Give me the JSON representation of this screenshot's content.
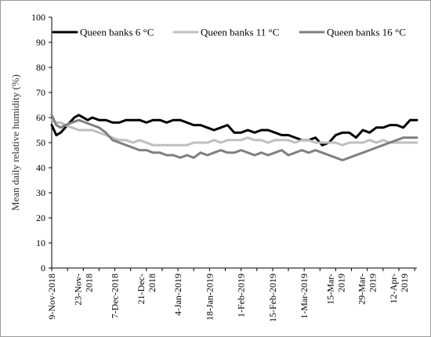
{
  "chart_data": {
    "type": "line",
    "title": "",
    "xlabel": "",
    "ylabel": "Mean daily relative humidity (%)",
    "ylim": [
      0,
      100
    ],
    "yticks": [
      0,
      10,
      20,
      30,
      40,
      50,
      60,
      70,
      80,
      90,
      100
    ],
    "xlim": [
      "2018-11-09",
      "2019-04-20"
    ],
    "grid": false,
    "legend_position": "top",
    "x_tick_labels": [
      {
        "date": "2018-11-09",
        "lines": [
          "9-Nov-2018"
        ]
      },
      {
        "date": "2018-11-23",
        "lines": [
          "23-Nov-",
          "2018"
        ]
      },
      {
        "date": "2018-12-07",
        "lines": [
          "7-Dec-2018"
        ]
      },
      {
        "date": "2018-12-21",
        "lines": [
          "21-Dec-",
          "2018"
        ]
      },
      {
        "date": "2019-01-04",
        "lines": [
          "4-Jan-2019"
        ]
      },
      {
        "date": "2019-01-18",
        "lines": [
          "18-Jan-2019"
        ]
      },
      {
        "date": "2019-02-01",
        "lines": [
          "1-Feb-2019"
        ]
      },
      {
        "date": "2019-02-15",
        "lines": [
          "15-Feb-2019"
        ]
      },
      {
        "date": "2019-03-01",
        "lines": [
          "1-Mar-2019"
        ]
      },
      {
        "date": "2019-03-15",
        "lines": [
          "15-Mar-",
          "2019"
        ]
      },
      {
        "date": "2019-03-29",
        "lines": [
          "29-Mar-",
          "2019"
        ]
      },
      {
        "date": "2019-04-12",
        "lines": [
          "12-Apr-",
          "2019"
        ]
      }
    ],
    "series": [
      {
        "name": "Queen banks 6 °C",
        "color": "#000000",
        "points": [
          [
            "2018-11-09",
            57
          ],
          [
            "2018-11-11",
            53
          ],
          [
            "2018-11-13",
            54
          ],
          [
            "2018-11-15",
            56
          ],
          [
            "2018-11-17",
            58
          ],
          [
            "2018-11-19",
            60
          ],
          [
            "2018-11-21",
            61
          ],
          [
            "2018-11-23",
            60
          ],
          [
            "2018-11-25",
            59
          ],
          [
            "2018-11-27",
            60
          ],
          [
            "2018-11-30",
            59
          ],
          [
            "2018-12-03",
            59
          ],
          [
            "2018-12-06",
            58
          ],
          [
            "2018-12-09",
            58
          ],
          [
            "2018-12-12",
            59
          ],
          [
            "2018-12-15",
            59
          ],
          [
            "2018-12-18",
            59
          ],
          [
            "2018-12-21",
            58
          ],
          [
            "2018-12-24",
            59
          ],
          [
            "2018-12-27",
            59
          ],
          [
            "2018-12-30",
            58
          ],
          [
            "2019-01-02",
            59
          ],
          [
            "2019-01-05",
            59
          ],
          [
            "2019-01-08",
            58
          ],
          [
            "2019-01-11",
            57
          ],
          [
            "2019-01-14",
            57
          ],
          [
            "2019-01-17",
            56
          ],
          [
            "2019-01-20",
            55
          ],
          [
            "2019-01-23",
            56
          ],
          [
            "2019-01-26",
            57
          ],
          [
            "2019-01-29",
            54
          ],
          [
            "2019-02-01",
            54
          ],
          [
            "2019-02-04",
            55
          ],
          [
            "2019-02-07",
            54
          ],
          [
            "2019-02-10",
            55
          ],
          [
            "2019-02-13",
            55
          ],
          [
            "2019-02-16",
            54
          ],
          [
            "2019-02-19",
            53
          ],
          [
            "2019-02-22",
            53
          ],
          [
            "2019-02-25",
            52
          ],
          [
            "2019-02-28",
            51
          ],
          [
            "2019-03-03",
            51
          ],
          [
            "2019-03-06",
            52
          ],
          [
            "2019-03-09",
            49
          ],
          [
            "2019-03-12",
            50
          ],
          [
            "2019-03-15",
            53
          ],
          [
            "2019-03-18",
            54
          ],
          [
            "2019-03-21",
            54
          ],
          [
            "2019-03-24",
            52
          ],
          [
            "2019-03-27",
            55
          ],
          [
            "2019-03-30",
            54
          ],
          [
            "2019-04-02",
            56
          ],
          [
            "2019-04-05",
            56
          ],
          [
            "2019-04-08",
            57
          ],
          [
            "2019-04-11",
            57
          ],
          [
            "2019-04-14",
            56
          ],
          [
            "2019-04-17",
            59
          ],
          [
            "2019-04-20",
            59
          ]
        ]
      },
      {
        "name": "Queen banks 11 °C",
        "color": "#bfbfbf",
        "points": [
          [
            "2018-11-09",
            59
          ],
          [
            "2018-11-11",
            58
          ],
          [
            "2018-11-13",
            58
          ],
          [
            "2018-11-15",
            57
          ],
          [
            "2018-11-18",
            56
          ],
          [
            "2018-11-21",
            55
          ],
          [
            "2018-11-24",
            55
          ],
          [
            "2018-11-27",
            55
          ],
          [
            "2018-11-30",
            54
          ],
          [
            "2018-12-03",
            53
          ],
          [
            "2018-12-06",
            52
          ],
          [
            "2018-12-09",
            51
          ],
          [
            "2018-12-12",
            51
          ],
          [
            "2018-12-15",
            50
          ],
          [
            "2018-12-18",
            51
          ],
          [
            "2018-12-21",
            50
          ],
          [
            "2018-12-24",
            49
          ],
          [
            "2018-12-27",
            49
          ],
          [
            "2018-12-30",
            49
          ],
          [
            "2019-01-02",
            49
          ],
          [
            "2019-01-05",
            49
          ],
          [
            "2019-01-08",
            49
          ],
          [
            "2019-01-11",
            50
          ],
          [
            "2019-01-14",
            50
          ],
          [
            "2019-01-17",
            50
          ],
          [
            "2019-01-20",
            51
          ],
          [
            "2019-01-23",
            50
          ],
          [
            "2019-01-26",
            51
          ],
          [
            "2019-01-29",
            51
          ],
          [
            "2019-02-01",
            51
          ],
          [
            "2019-02-04",
            52
          ],
          [
            "2019-02-07",
            51
          ],
          [
            "2019-02-10",
            51
          ],
          [
            "2019-02-13",
            50
          ],
          [
            "2019-02-16",
            51
          ],
          [
            "2019-02-19",
            51
          ],
          [
            "2019-02-22",
            51
          ],
          [
            "2019-02-25",
            50
          ],
          [
            "2019-02-28",
            51
          ],
          [
            "2019-03-03",
            51
          ],
          [
            "2019-03-06",
            50
          ],
          [
            "2019-03-09",
            50
          ],
          [
            "2019-03-12",
            50
          ],
          [
            "2019-03-15",
            50
          ],
          [
            "2019-03-18",
            49
          ],
          [
            "2019-03-21",
            50
          ],
          [
            "2019-03-24",
            50
          ],
          [
            "2019-03-27",
            50
          ],
          [
            "2019-03-30",
            51
          ],
          [
            "2019-04-02",
            50
          ],
          [
            "2019-04-05",
            51
          ],
          [
            "2019-04-08",
            50
          ],
          [
            "2019-04-11",
            50
          ],
          [
            "2019-04-14",
            50
          ],
          [
            "2019-04-17",
            50
          ],
          [
            "2019-04-20",
            50
          ]
        ]
      },
      {
        "name": "Queen banks 16 °C",
        "color": "#808080",
        "points": [
          [
            "2018-11-09",
            61
          ],
          [
            "2018-11-11",
            57
          ],
          [
            "2018-11-13",
            56
          ],
          [
            "2018-11-15",
            57
          ],
          [
            "2018-11-18",
            58
          ],
          [
            "2018-11-21",
            59
          ],
          [
            "2018-11-24",
            58
          ],
          [
            "2018-11-27",
            57
          ],
          [
            "2018-11-30",
            56
          ],
          [
            "2018-12-03",
            54
          ],
          [
            "2018-12-06",
            51
          ],
          [
            "2018-12-09",
            50
          ],
          [
            "2018-12-12",
            49
          ],
          [
            "2018-12-15",
            48
          ],
          [
            "2018-12-18",
            47
          ],
          [
            "2018-12-21",
            47
          ],
          [
            "2018-12-24",
            46
          ],
          [
            "2018-12-27",
            46
          ],
          [
            "2018-12-30",
            45
          ],
          [
            "2019-01-02",
            45
          ],
          [
            "2019-01-05",
            44
          ],
          [
            "2019-01-08",
            45
          ],
          [
            "2019-01-11",
            44
          ],
          [
            "2019-01-14",
            46
          ],
          [
            "2019-01-17",
            45
          ],
          [
            "2019-01-20",
            46
          ],
          [
            "2019-01-23",
            47
          ],
          [
            "2019-01-26",
            46
          ],
          [
            "2019-01-29",
            46
          ],
          [
            "2019-02-01",
            47
          ],
          [
            "2019-02-04",
            46
          ],
          [
            "2019-02-07",
            45
          ],
          [
            "2019-02-10",
            46
          ],
          [
            "2019-02-13",
            45
          ],
          [
            "2019-02-16",
            46
          ],
          [
            "2019-02-19",
            47
          ],
          [
            "2019-02-22",
            45
          ],
          [
            "2019-02-25",
            46
          ],
          [
            "2019-02-28",
            47
          ],
          [
            "2019-03-03",
            46
          ],
          [
            "2019-03-06",
            47
          ],
          [
            "2019-03-09",
            46
          ],
          [
            "2019-03-12",
            45
          ],
          [
            "2019-03-15",
            44
          ],
          [
            "2019-03-18",
            43
          ],
          [
            "2019-03-21",
            44
          ],
          [
            "2019-03-24",
            45
          ],
          [
            "2019-03-27",
            46
          ],
          [
            "2019-03-30",
            47
          ],
          [
            "2019-04-02",
            48
          ],
          [
            "2019-04-05",
            49
          ],
          [
            "2019-04-08",
            50
          ],
          [
            "2019-04-11",
            51
          ],
          [
            "2019-04-14",
            52
          ],
          [
            "2019-04-17",
            52
          ],
          [
            "2019-04-20",
            52
          ]
        ]
      }
    ]
  }
}
